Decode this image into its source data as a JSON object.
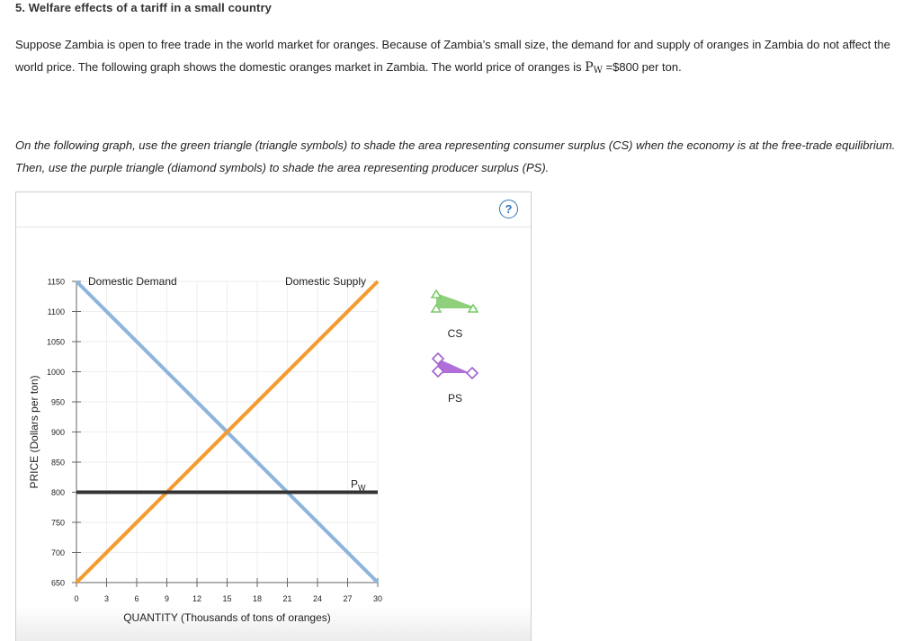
{
  "question": {
    "title": "5. Welfare effects of a tariff in a small country",
    "intro_before_pw": "Suppose Zambia is open to free trade in the world market for oranges. Because of Zambia’s small size, the demand for and supply of oranges in Zambia do not affect the world price. The following graph shows the domestic oranges market in Zambia. The world price of oranges is ",
    "pw_symbol": "P",
    "pw_subscript": "W",
    "intro_after_pw": " =$800 per ton.",
    "instructions": "On the following graph, use the green triangle (triangle symbols) to shade the area representing consumer surplus (CS) when the economy is at the free-trade equilibrium. Then, use the purple triangle (diamond symbols) to shade the area representing producer surplus (PS)."
  },
  "help_button": {
    "label": "?"
  },
  "palette": {
    "cs_tool": {
      "label": "CS",
      "fill": "#8fd17a",
      "stroke": "#7bc96a"
    },
    "ps_tool": {
      "label": "PS",
      "fill": "#b06fd8",
      "stroke": "#a35fcf"
    }
  },
  "colors": {
    "demand": "#8fb4dc",
    "supply": "#f59a2f",
    "world_price": "#333333",
    "grid": "#eeeeee"
  },
  "chart_data": {
    "type": "line",
    "xlabel": "QUANTITY (Thousands of tons of oranges)",
    "ylabel": "PRICE (Dollars per ton)",
    "xlim": [
      0,
      30
    ],
    "ylim": [
      650,
      1150
    ],
    "x_ticks": [
      0,
      3,
      6,
      9,
      12,
      15,
      18,
      21,
      24,
      27,
      30
    ],
    "y_ticks": [
      650,
      700,
      750,
      800,
      850,
      900,
      950,
      1000,
      1050,
      1100,
      1150
    ],
    "grid": true,
    "series": [
      {
        "name": "Domestic Demand",
        "x": [
          0,
          30
        ],
        "y": [
          1150,
          650
        ]
      },
      {
        "name": "Domestic Supply",
        "x": [
          0,
          30
        ],
        "y": [
          650,
          1150
        ]
      }
    ],
    "world_price": {
      "label_main": "P",
      "label_sub": "W",
      "value": 800
    }
  }
}
